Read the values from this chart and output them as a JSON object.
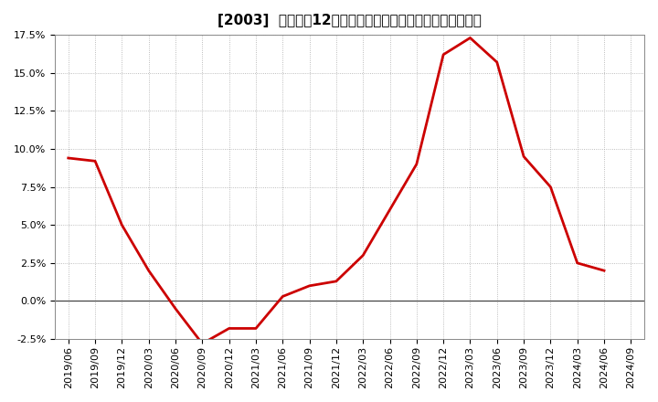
{
  "title": "[2003]  売上高の12か月移動合計の対前年同期増減率の推移",
  "line_color": "#cc0000",
  "background_color": "#ffffff",
  "plot_bg_color": "#ffffff",
  "grid_color": "#aaaaaa",
  "ylim": [
    -0.025,
    0.175
  ],
  "yticks": [
    -0.025,
    0.0,
    0.025,
    0.05,
    0.075,
    0.1,
    0.125,
    0.15,
    0.175
  ],
  "dates": [
    "2019/06",
    "2019/09",
    "2019/12",
    "2020/03",
    "2020/06",
    "2020/09",
    "2020/12",
    "2021/03",
    "2021/06",
    "2021/09",
    "2021/12",
    "2022/03",
    "2022/06",
    "2022/09",
    "2022/12",
    "2023/03",
    "2023/06",
    "2023/09",
    "2023/12",
    "2024/03",
    "2024/06",
    "2024/09"
  ],
  "values": [
    0.094,
    0.092,
    0.05,
    0.02,
    -0.005,
    -0.028,
    -0.018,
    -0.018,
    0.003,
    0.01,
    0.013,
    0.03,
    0.06,
    0.09,
    0.162,
    0.173,
    0.157,
    0.095,
    0.075,
    0.025,
    0.02,
    null
  ],
  "line_width": 2.0,
  "title_fontsize": 11,
  "tick_fontsize": 8
}
